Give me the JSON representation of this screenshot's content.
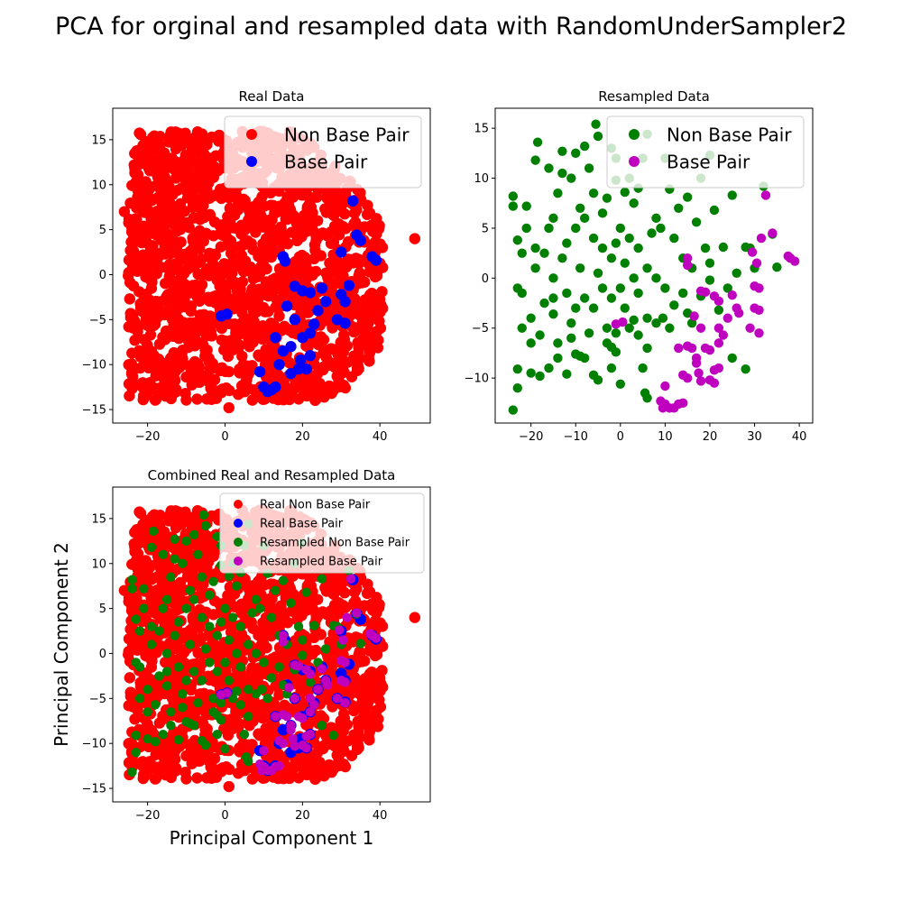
{
  "suptitle": "PCA for orginal and resampled data with RandomUnderSampler2",
  "colors": {
    "non_base_real": "#ff0000",
    "base_real": "#0000ff",
    "non_base_resampled": "#008000",
    "base_resampled": "#bf00bf"
  },
  "chart_data": [
    {
      "type": "scatter",
      "title": "Real Data",
      "xlabel": "",
      "ylabel": "",
      "xlim": [
        -29,
        53
      ],
      "ylim": [
        -16.5,
        18.5
      ],
      "xticks": [
        -20,
        0,
        20,
        40
      ],
      "yticks": [
        -15,
        -10,
        -5,
        0,
        5,
        10,
        15
      ],
      "legend": {
        "position": "top-right",
        "size": "large",
        "entries": [
          "Non Base Pair",
          "Base Pair"
        ]
      },
      "series": [
        {
          "name": "Non Base Pair",
          "color": "#ff0000",
          "region": {
            "x_range": [
              -25,
              41
            ],
            "y_range": [
              -14,
              16
            ]
          },
          "outliers": [
            [
              49,
              4
            ],
            [
              1,
              -14.8
            ],
            [
              -26,
              7
            ]
          ]
        },
        {
          "name": "Base Pair",
          "color": "#0000ff",
          "points": [
            [
              33,
              8.2
            ],
            [
              38,
              2
            ],
            [
              39,
              1.6
            ],
            [
              34,
              4.4
            ],
            [
              30,
              2.5
            ],
            [
              15,
              2
            ],
            [
              15.5,
              1.5
            ],
            [
              18,
              -1.3
            ],
            [
              20,
              -1.8
            ],
            [
              22,
              -2
            ],
            [
              25,
              -1.5
            ],
            [
              32,
              -1.2
            ],
            [
              31,
              -3
            ],
            [
              29,
              -5
            ],
            [
              31,
              -5.4
            ],
            [
              24,
              -4
            ],
            [
              23,
              -5.5
            ],
            [
              18,
              -5
            ],
            [
              22,
              -6.5
            ],
            [
              20,
              -7
            ],
            [
              17,
              -8
            ],
            [
              15,
              -8.5
            ],
            [
              14,
              -10
            ],
            [
              22,
              -9
            ],
            [
              21,
              -10.5
            ],
            [
              19,
              -10.5
            ],
            [
              17,
              -11
            ],
            [
              10,
              -12.5
            ],
            [
              11,
              -13
            ],
            [
              12,
              -12.8
            ],
            [
              13,
              -12.5
            ],
            [
              9,
              -10.8
            ],
            [
              -1,
              -4.6
            ],
            [
              0.5,
              -4.4
            ],
            [
              26,
              -3
            ],
            [
              35,
              3.8
            ],
            [
              16,
              -3.5
            ],
            [
              13,
              -7
            ],
            [
              30,
              -2.2
            ],
            [
              19.5,
              -9.5
            ]
          ]
        }
      ]
    },
    {
      "type": "scatter",
      "title": "Resampled Data",
      "xlabel": "",
      "ylabel": "",
      "xlim": [
        -28,
        43
      ],
      "ylim": [
        -14.5,
        17
      ],
      "xticks": [
        -20,
        -10,
        0,
        10,
        20,
        30,
        40
      ],
      "yticks": [
        -10,
        -5,
        0,
        5,
        10,
        15
      ],
      "legend": {
        "position": "top-right",
        "size": "large",
        "entries": [
          "Non Base Pair",
          "Base Pair"
        ]
      },
      "series": [
        {
          "name": "Non Base Pair",
          "color": "#008000",
          "points": [
            [
              -24,
              8.2
            ],
            [
              -24,
              7.2
            ],
            [
              -23,
              3.8
            ],
            [
              -21,
              7.2
            ],
            [
              -19,
              11.8
            ],
            [
              -18.5,
              13.6
            ],
            [
              -16,
              11
            ],
            [
              -13,
              12.7
            ],
            [
              -10,
              12.5
            ],
            [
              -8,
              13.2
            ],
            [
              -5.5,
              15.4
            ],
            [
              -5,
              14.2
            ],
            [
              -2,
              13
            ],
            [
              -1,
              12
            ],
            [
              -1,
              9.8
            ],
            [
              1,
              8.6
            ],
            [
              5,
              12
            ],
            [
              6,
              14.4
            ],
            [
              10,
              12
            ],
            [
              11,
              8.9
            ],
            [
              15,
              8.1
            ],
            [
              17,
              5.6
            ],
            [
              20,
              12.3
            ],
            [
              21,
              6.8
            ],
            [
              23,
              3.1
            ],
            [
              25,
              8.3
            ],
            [
              28,
              3.1
            ],
            [
              29,
              3
            ],
            [
              30,
              1
            ],
            [
              32,
              9.2
            ],
            [
              35,
              1.1
            ],
            [
              34,
              4.4
            ],
            [
              -22,
              2.5
            ],
            [
              -22,
              -1.5
            ],
            [
              -23,
              -9.1
            ],
            [
              -23,
              -11
            ],
            [
              -24,
              -13.2
            ],
            [
              -20,
              -4
            ],
            [
              -18,
              -5.7
            ],
            [
              -18,
              -9.8
            ],
            [
              -15,
              -3.6
            ],
            [
              -14,
              -6.5
            ],
            [
              -14,
              -8
            ],
            [
              -12,
              -9.6
            ],
            [
              -11,
              -4.5
            ],
            [
              -10,
              -7.6
            ],
            [
              -9,
              -7.8
            ],
            [
              -6,
              -9.7
            ],
            [
              -5,
              -10.2
            ],
            [
              -3,
              -6.5
            ],
            [
              -2,
              -6.9
            ],
            [
              -1,
              -7.4
            ],
            [
              0,
              -10.6
            ],
            [
              2,
              -5
            ],
            [
              3,
              -4.2
            ],
            [
              4,
              -5.7
            ],
            [
              5,
              -9
            ],
            [
              5.5,
              -11.5
            ],
            [
              6,
              -12
            ],
            [
              8,
              -4.5
            ],
            [
              9.5,
              -4
            ],
            [
              10,
              -1
            ],
            [
              12,
              -2.7
            ],
            [
              15,
              -3.5
            ],
            [
              16,
              -4.5
            ],
            [
              20,
              -0.2
            ],
            [
              20,
              1.5
            ],
            [
              22,
              -3.2
            ],
            [
              25,
              -8
            ],
            [
              28,
              -9.1
            ],
            [
              -15,
              0
            ],
            [
              -13,
              2
            ],
            [
              -12,
              3.5
            ],
            [
              -10,
              5
            ],
            [
              -8,
              6
            ],
            [
              -6,
              4
            ],
            [
              -4,
              3
            ],
            [
              -2,
              2
            ],
            [
              0,
              5
            ],
            [
              2,
              4
            ],
            [
              4,
              3
            ],
            [
              6,
              1
            ],
            [
              8,
              0
            ],
            [
              -8,
              -2
            ],
            [
              -6,
              -3
            ],
            [
              -4,
              -1
            ],
            [
              -2,
              -2
            ],
            [
              0,
              -1
            ],
            [
              3,
              0
            ],
            [
              -16,
              5
            ],
            [
              -17,
              2.5
            ],
            [
              -19,
              1
            ],
            [
              -12,
              -1.5
            ],
            [
              -10,
              -3
            ],
            [
              -14,
              8.5
            ],
            [
              -11,
              10
            ],
            [
              -7,
              11
            ],
            [
              -3,
              8
            ],
            [
              3,
              7.5
            ],
            [
              8,
              6
            ],
            [
              12,
              4
            ],
            [
              14,
              2
            ],
            [
              -20,
              -6.5
            ],
            [
              -22,
              -5
            ],
            [
              -17,
              -2.5
            ],
            [
              -9,
              1
            ],
            [
              -5,
              0.5
            ],
            [
              1,
              -3
            ],
            [
              -3,
              -5
            ],
            [
              -7,
              -5.5
            ],
            [
              -11,
              -6
            ],
            [
              -15,
              -2
            ],
            [
              -19,
              3
            ],
            [
              -21,
              5
            ],
            [
              -23,
              -1
            ],
            [
              2,
              10
            ],
            [
              4,
              9
            ],
            [
              7,
              4.5
            ],
            [
              9,
              5
            ],
            [
              13,
              7
            ],
            [
              18,
              10
            ],
            [
              19,
              3
            ],
            [
              16,
              1
            ],
            [
              18,
              -1.8
            ],
            [
              24,
              -1
            ],
            [
              26,
              0.5
            ],
            [
              14,
              -1.5
            ],
            [
              11,
              -5
            ],
            [
              6,
              -7
            ],
            [
              -1,
              -5.5
            ],
            [
              -13,
              10.5
            ],
            [
              -15,
              6
            ],
            [
              -9,
              7
            ],
            [
              -6,
              8.5
            ],
            [
              -4,
              6.5
            ],
            [
              -1,
              3.5
            ],
            [
              1,
              1.5
            ],
            [
              4,
              -1.5
            ],
            [
              6,
              -4
            ],
            [
              -2,
              -9
            ],
            [
              -8,
              -8
            ],
            [
              -16,
              -9
            ],
            [
              -20,
              -9.5
            ]
          ]
        },
        {
          "name": "Base Pair",
          "color": "#bf00bf",
          "points": [
            [
              32.5,
              8.3
            ],
            [
              38,
              2
            ],
            [
              39,
              1.7
            ],
            [
              37.5,
              2.2
            ],
            [
              34,
              4.5
            ],
            [
              31.5,
              4
            ],
            [
              29.5,
              2.6
            ],
            [
              30.5,
              1.5
            ],
            [
              15,
              2
            ],
            [
              15,
              1.3
            ],
            [
              18,
              -1.3
            ],
            [
              19,
              -1.4
            ],
            [
              21,
              -1.8
            ],
            [
              22,
              -2.3
            ],
            [
              25,
              -1.7
            ],
            [
              30,
              -0.8
            ],
            [
              31,
              -1
            ],
            [
              30,
              -3
            ],
            [
              31,
              -3.2
            ],
            [
              29,
              -5
            ],
            [
              31,
              -5.5
            ],
            [
              26,
              -3
            ],
            [
              24,
              -4
            ],
            [
              22,
              -5
            ],
            [
              23,
              -5.7
            ],
            [
              18,
              -5
            ],
            [
              19,
              -7
            ],
            [
              22,
              -6.5
            ],
            [
              20,
              -7.2
            ],
            [
              17,
              -8
            ],
            [
              16,
              -7
            ],
            [
              15,
              -6.8
            ],
            [
              14,
              -9.7
            ],
            [
              15,
              -10
            ],
            [
              21,
              -9.2
            ],
            [
              22,
              -9
            ],
            [
              21,
              -10.5
            ],
            [
              20,
              -10.2
            ],
            [
              18,
              -10.3
            ],
            [
              17,
              -8.5
            ],
            [
              17.5,
              -9.5
            ],
            [
              10,
              -10.8
            ],
            [
              10,
              -12.6
            ],
            [
              11,
              -13
            ],
            [
              12,
              -13
            ],
            [
              13,
              -12.6
            ],
            [
              14,
              -12.5
            ],
            [
              9,
              -12.3
            ],
            [
              9.5,
              -13
            ],
            [
              -1,
              -4.6
            ],
            [
              0.5,
              -4.4
            ],
            [
              26.5,
              -3.5
            ],
            [
              16.5,
              -3.8
            ],
            [
              13,
              -7
            ]
          ]
        }
      ]
    },
    {
      "type": "scatter",
      "title": "Combined Real and Resampled Data",
      "xlabel": "Principal Component 1",
      "ylabel": "Principal Component 2",
      "xlim": [
        -29,
        53
      ],
      "ylim": [
        -16.5,
        18.5
      ],
      "xticks": [
        -20,
        0,
        20,
        40
      ],
      "yticks": [
        -15,
        -10,
        -5,
        0,
        5,
        10,
        15
      ],
      "legend": {
        "position": "top-right",
        "size": "small",
        "entries": [
          "Real Non Base Pair",
          "Real Base Pair",
          "Resampled Non Base Pair",
          "Resampled Base Pair"
        ]
      },
      "series": [
        {
          "name": "Real Non Base Pair",
          "color": "#ff0000",
          "ref": "real-non-base"
        },
        {
          "name": "Real Base Pair",
          "color": "#0000ff",
          "ref": "real-base"
        },
        {
          "name": "Resampled Non Base Pair",
          "color": "#008000",
          "ref": "resampled-non-base"
        },
        {
          "name": "Resampled Base Pair",
          "color": "#bf00bf",
          "ref": "resampled-base"
        }
      ]
    }
  ]
}
